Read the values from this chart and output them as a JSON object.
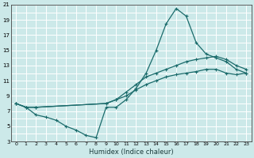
{
  "xlabel": "Humidex (Indice chaleur)",
  "xlim": [
    -0.5,
    23.5
  ],
  "ylim": [
    3,
    21
  ],
  "xticks": [
    0,
    1,
    2,
    3,
    4,
    5,
    6,
    7,
    8,
    9,
    10,
    11,
    12,
    13,
    14,
    15,
    16,
    17,
    18,
    19,
    20,
    21,
    22,
    23
  ],
  "yticks": [
    3,
    5,
    7,
    9,
    11,
    13,
    15,
    17,
    19,
    21
  ],
  "bg_color": "#cce9e9",
  "grid_major_color": "#ffffff",
  "grid_minor_color": "#ddf3f3",
  "line_color": "#1a6b6b",
  "line1_x": [
    0,
    1,
    2,
    3,
    4,
    5,
    6,
    7,
    8,
    9,
    10,
    11,
    12,
    13,
    14,
    15,
    16,
    17,
    18,
    19,
    20,
    21,
    22,
    23
  ],
  "line1_y": [
    8.0,
    7.5,
    6.5,
    6.2,
    5.8,
    5.0,
    4.5,
    3.8,
    3.5,
    7.5,
    7.5,
    8.5,
    10.0,
    12.0,
    15.0,
    18.5,
    20.5,
    19.5,
    16.0,
    14.5,
    14.0,
    13.5,
    12.5,
    12.0
  ],
  "line2_x": [
    0,
    1,
    2,
    9,
    10,
    11,
    12,
    13,
    14,
    15,
    16,
    17,
    18,
    19,
    20,
    21,
    22,
    23
  ],
  "line2_y": [
    8.0,
    7.5,
    7.5,
    8.0,
    8.5,
    9.5,
    10.5,
    11.5,
    12.0,
    12.5,
    13.0,
    13.5,
    13.8,
    14.0,
    14.2,
    13.8,
    13.0,
    12.5
  ],
  "line3_x": [
    0,
    1,
    2,
    9,
    10,
    11,
    12,
    13,
    14,
    15,
    16,
    17,
    18,
    19,
    20,
    21,
    22,
    23
  ],
  "line3_y": [
    8.0,
    7.5,
    7.5,
    8.0,
    8.5,
    9.0,
    9.8,
    10.5,
    11.0,
    11.5,
    11.8,
    12.0,
    12.2,
    12.5,
    12.5,
    12.0,
    11.8,
    12.0
  ]
}
